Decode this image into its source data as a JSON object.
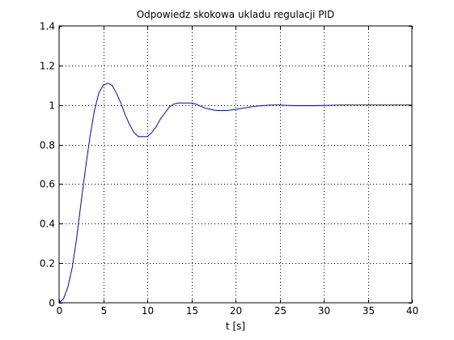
{
  "chart_data": {
    "type": "line",
    "title": "Odpowiedz skokowa ukladu regulacji PID",
    "xlabel": "t [s]",
    "ylabel": "",
    "xlim": [
      0,
      40
    ],
    "ylim": [
      0,
      1.4
    ],
    "xticks": [
      0,
      5,
      10,
      15,
      20,
      25,
      30,
      35,
      40
    ],
    "yticks": [
      0,
      0.2,
      0.4,
      0.6,
      0.8,
      1,
      1.2,
      1.4
    ],
    "grid": true,
    "line_color": "#0000ff",
    "series": [
      {
        "x": [
          0,
          0.5,
          1,
          1.5,
          2,
          2.5,
          3,
          3.5,
          4,
          4.5,
          5,
          5.5,
          6,
          6.5,
          7,
          7.5,
          8,
          8.5,
          9,
          9.5,
          10,
          10.5,
          11,
          11.5,
          12,
          12.5,
          13,
          13.5,
          14,
          14.5,
          15,
          15.5,
          16,
          16.5,
          17,
          17.5,
          18,
          18.5,
          19,
          19.5,
          20,
          21,
          22,
          23,
          24,
          25,
          26,
          27,
          28,
          29,
          30,
          31,
          32,
          34,
          36,
          38,
          40
        ],
        "y": [
          0,
          0.02,
          0.08,
          0.18,
          0.33,
          0.51,
          0.68,
          0.84,
          0.97,
          1.06,
          1.1,
          1.11,
          1.1,
          1.06,
          1.01,
          0.95,
          0.9,
          0.86,
          0.84,
          0.84,
          0.84,
          0.86,
          0.89,
          0.93,
          0.96,
          0.99,
          1.005,
          1.01,
          1.01,
          1.01,
          1.01,
          1.005,
          0.995,
          0.985,
          0.98,
          0.975,
          0.972,
          0.972,
          0.972,
          0.975,
          0.978,
          0.985,
          0.992,
          0.997,
          1.0,
          1.0,
          0.998,
          0.997,
          0.997,
          0.997,
          0.998,
          0.999,
          1.0,
          1.0,
          1.0,
          1.0,
          1.0
        ]
      }
    ]
  }
}
